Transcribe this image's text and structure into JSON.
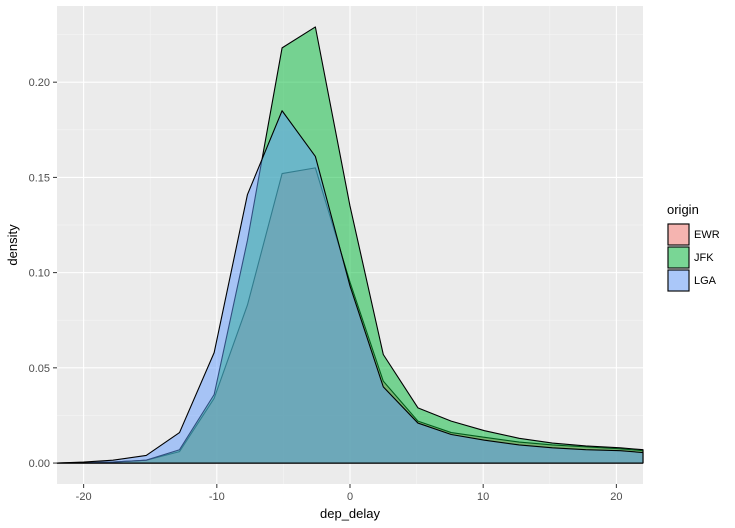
{
  "chart_data": {
    "type": "area",
    "title": "",
    "xlabel": "dep_delay",
    "ylabel": "density",
    "xlim": [
      -22,
      22
    ],
    "ylim": [
      -0.011,
      0.24
    ],
    "x_ticks": [
      -20,
      -10,
      0,
      10,
      20
    ],
    "x_tick_labels": [
      "-20",
      "-10",
      "0",
      "10",
      "20"
    ],
    "y_ticks": [
      0,
      0.05,
      0.1,
      0.15,
      0.2
    ],
    "y_tick_labels": [
      "0.00",
      "0.05",
      "0.10",
      "0.15",
      "0.20"
    ],
    "grid": true,
    "legend": {
      "title": "origin",
      "position": "right"
    },
    "x": [
      -22,
      -20,
      -17.8,
      -15.3,
      -12.8,
      -10.2,
      -7.7,
      -5.1,
      -2.6,
      0,
      2.5,
      5.1,
      7.6,
      10.1,
      12.7,
      15.2,
      17.7,
      20.3,
      22
    ],
    "series": [
      {
        "name": "EWR",
        "fill": "#f8766d",
        "values": [
          0,
          0.0002,
          0.0005,
          0.0015,
          0.006,
          0.034,
          0.083,
          0.152,
          0.155,
          0.095,
          0.043,
          0.022,
          0.016,
          0.0135,
          0.011,
          0.0095,
          0.0085,
          0.0075,
          0.0065
        ]
      },
      {
        "name": "JFK",
        "fill": "#00ba38",
        "values": [
          0,
          0.0002,
          0.0005,
          0.0015,
          0.007,
          0.036,
          0.117,
          0.218,
          0.229,
          0.135,
          0.057,
          0.029,
          0.022,
          0.017,
          0.013,
          0.0105,
          0.009,
          0.008,
          0.007
        ]
      },
      {
        "name": "LGA",
        "fill": "#619cff",
        "values": [
          0,
          0.0005,
          0.0015,
          0.004,
          0.016,
          0.058,
          0.141,
          0.185,
          0.161,
          0.093,
          0.04,
          0.021,
          0.015,
          0.012,
          0.0095,
          0.008,
          0.007,
          0.0065,
          0.0055
        ]
      }
    ]
  }
}
